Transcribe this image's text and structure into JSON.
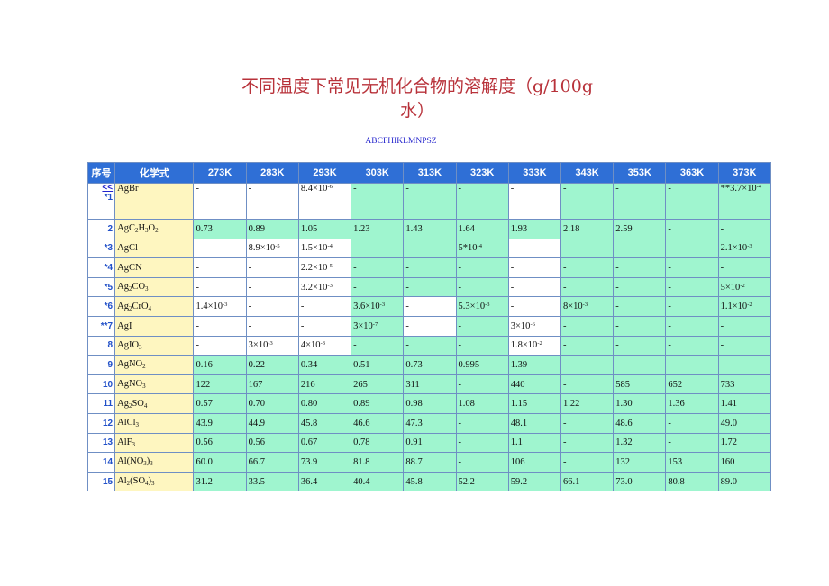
{
  "title": "不同温度下常见无机化合物的溶解度（g/100g 水）",
  "letters": "ABCFHIKLMNPSZ",
  "table": {
    "headers": [
      "序号",
      "化学式",
      "273K",
      "283K",
      "293K",
      "303K",
      "313K",
      "323K",
      "333K",
      "343K",
      "353K",
      "363K",
      "373K"
    ],
    "nav_link": "<<",
    "rows": [
      {
        "idx": "*1",
        "formula": "AgBr",
        "values": [
          "-",
          "-",
          "8.4×10-6",
          "-",
          "-",
          "-",
          "-",
          "-",
          "-",
          "-",
          "**3.7×10-4"
        ]
      },
      {
        "idx": "2",
        "formula": "AgC2H3O2",
        "values": [
          "0.73",
          "0.89",
          "1.05",
          "1.23",
          "1.43",
          "1.64",
          "1.93",
          "2.18",
          "2.59",
          "-",
          "-"
        ]
      },
      {
        "idx": "*3",
        "formula": "AgCl",
        "values": [
          "-",
          "8.9×10-5",
          "1.5×10-4",
          "-",
          "-",
          "5*10-4",
          "-",
          "-",
          "-",
          "-",
          "2.1×10-3"
        ]
      },
      {
        "idx": "*4",
        "formula": "AgCN",
        "values": [
          "-",
          "-",
          "2.2×10-5",
          "-",
          "-",
          "-",
          "-",
          "-",
          "-",
          "-",
          "-"
        ]
      },
      {
        "idx": "*5",
        "formula": "Ag2CO3",
        "values": [
          "-",
          "-",
          "3.2×10-3",
          "-",
          "-",
          "-",
          "-",
          "-",
          "-",
          "-",
          "5×10-2"
        ]
      },
      {
        "idx": "*6",
        "formula": "Ag2CrO4",
        "values": [
          "1.4×10-3",
          "-",
          "-",
          "3.6×10-3",
          "-",
          "5.3×10-3",
          "-",
          "8×10-3",
          "-",
          "-",
          "1.1×10-2"
        ]
      },
      {
        "idx": "**7",
        "formula": "AgI",
        "values": [
          "-",
          "-",
          "-",
          "3×10-7",
          "-",
          "-",
          "3×10-6",
          "-",
          "-",
          "-",
          "-"
        ]
      },
      {
        "idx": "8",
        "formula": "AgIO3",
        "values": [
          "-",
          "3×10-3",
          "4×10-3",
          "-",
          "-",
          "-",
          "1.8×10-2",
          "-",
          "-",
          "-",
          "-"
        ]
      },
      {
        "idx": "9",
        "formula": "AgNO2",
        "values": [
          "0.16",
          "0.22",
          "0.34",
          "0.51",
          "0.73",
          "0.995",
          "1.39",
          "-",
          "-",
          "-",
          "-"
        ]
      },
      {
        "idx": "10",
        "formula": "AgNO3",
        "values": [
          "122",
          "167",
          "216",
          "265",
          "311",
          "-",
          "440",
          "-",
          "585",
          "652",
          "733"
        ]
      },
      {
        "idx": "11",
        "formula": "Ag2SO4",
        "values": [
          "0.57",
          "0.70",
          "0.80",
          "0.89",
          "0.98",
          "1.08",
          "1.15",
          "1.22",
          "1.30",
          "1.36",
          "1.41"
        ]
      },
      {
        "idx": "12",
        "formula": "AlCl3",
        "values": [
          "43.9",
          "44.9",
          "45.8",
          "46.6",
          "47.3",
          "-",
          "48.1",
          "-",
          "48.6",
          "-",
          "49.0"
        ]
      },
      {
        "idx": "13",
        "formula": "AlF3",
        "values": [
          "0.56",
          "0.56",
          "0.67",
          "0.78",
          "0.91",
          "-",
          "1.1",
          "-",
          "1.32",
          "-",
          "1.72"
        ]
      },
      {
        "idx": "14",
        "formula": "Al(NO3)3",
        "values": [
          "60.0",
          "66.7",
          "73.9",
          "81.8",
          "88.7",
          "-",
          "106",
          "-",
          "132",
          "153",
          "160"
        ]
      },
      {
        "idx": "15",
        "formula": "Al2(SO4)3",
        "values": [
          "31.2",
          "33.5",
          "36.4",
          "40.4",
          "45.8",
          "52.2",
          "59.2",
          "66.1",
          "73.0",
          "80.8",
          "89.0"
        ]
      }
    ]
  },
  "colors": {
    "title": "#b8323a",
    "header_bg": "#2f6fd6",
    "index_text": "#2150c8",
    "formula_bg": "#fef6c0",
    "value_bg": "#9ff5cf",
    "border": "#6f8fc4"
  }
}
